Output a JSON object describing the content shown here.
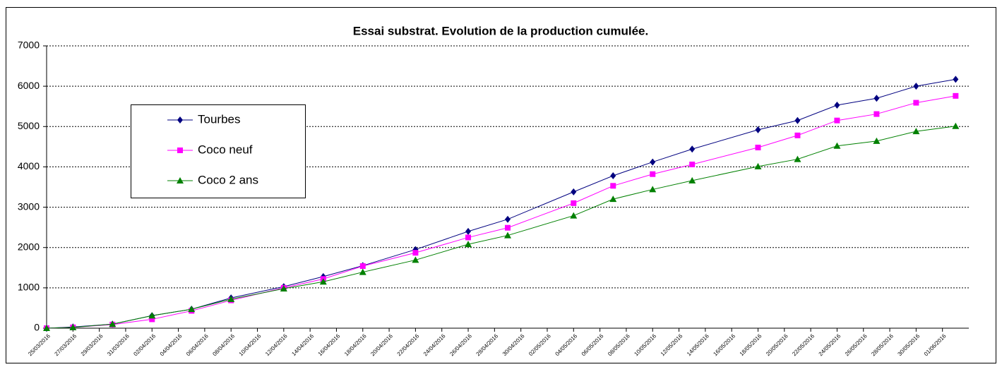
{
  "chart_data": {
    "type": "line",
    "title": "Essai substrat. Evolution de la production cumulée.",
    "x": [
      "25/03/2016",
      "27/03/2016",
      "30/03/2016",
      "02/04/2016",
      "05/04/2016",
      "08/04/2016",
      "12/04/2016",
      "15/04/2016",
      "18/04/2016",
      "22/04/2016",
      "26/04/2016",
      "29/04/2016",
      "04/05/2016",
      "07/05/2016",
      "10/05/2016",
      "13/05/2016",
      "18/05/2016",
      "21/05/2016",
      "24/05/2016",
      "27/05/2016",
      "30/05/2016",
      "02/06/2016"
    ],
    "series": [
      {
        "name": "Tourbes",
        "color": "#000080",
        "marker": "diamond",
        "values": [
          0,
          30,
          100,
          310,
          470,
          750,
          1030,
          1280,
          1550,
          1950,
          2400,
          2700,
          3380,
          3780,
          4120,
          4440,
          4920,
          5150,
          5530,
          5700,
          6000,
          6170
        ]
      },
      {
        "name": "Coco neuf",
        "color": "#ff00ff",
        "marker": "square",
        "values": [
          0,
          20,
          90,
          220,
          430,
          690,
          1000,
          1220,
          1540,
          1870,
          2250,
          2490,
          3100,
          3530,
          3820,
          4060,
          4480,
          4780,
          5150,
          5310,
          5590,
          5760
        ]
      },
      {
        "name": "Coco 2 ans",
        "color": "#008000",
        "marker": "triangle",
        "values": [
          0,
          20,
          100,
          310,
          470,
          720,
          980,
          1150,
          1390,
          1690,
          2080,
          2300,
          2790,
          3200,
          3440,
          3660,
          4010,
          4190,
          4520,
          4640,
          4880,
          5010
        ]
      }
    ],
    "xlim": [
      "25/03/2016",
      "03/06/2016"
    ],
    "xticks": [
      "25/03/2016",
      "27/03/2016",
      "29/03/2016",
      "31/03/2016",
      "02/04/2016",
      "04/04/2016",
      "06/04/2016",
      "08/04/2016",
      "10/04/2016",
      "12/04/2016",
      "14/04/2016",
      "16/04/2016",
      "18/04/2016",
      "20/04/2016",
      "22/04/2016",
      "24/04/2016",
      "26/04/2016",
      "28/04/2016",
      "30/04/2016",
      "02/05/2016",
      "04/05/2016",
      "06/05/2016",
      "08/05/2016",
      "10/05/2016",
      "12/05/2016",
      "14/05/2016",
      "16/05/2016",
      "18/05/2016",
      "20/05/2016",
      "22/05/2016",
      "24/05/2016",
      "26/05/2016",
      "28/05/2016",
      "30/05/2016",
      "01/06/2016"
    ],
    "ylim": [
      0,
      7000
    ],
    "yticks": [
      0,
      1000,
      2000,
      3000,
      4000,
      5000,
      6000,
      7000
    ],
    "grid": true,
    "legend": "left"
  }
}
